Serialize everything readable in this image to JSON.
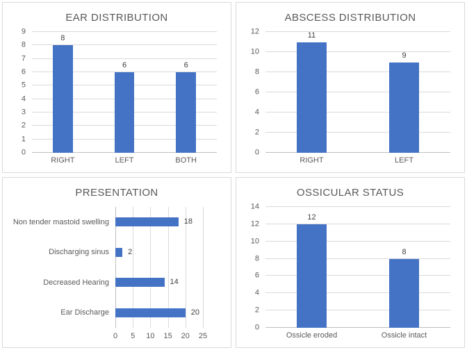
{
  "colors": {
    "bar_fill": "#4472C4",
    "gridline": "#D9D9D9",
    "axis_line": "#BFBFBF",
    "panel_border": "#D9D9D9",
    "title_text": "#595959",
    "axis_text": "#595959",
    "data_label_text": "#404040"
  },
  "chart_data": [
    {
      "type": "bar",
      "orientation": "vertical",
      "title": "EAR DISTRIBUTION",
      "categories": [
        "RIGHT",
        "LEFT",
        "BOTH"
      ],
      "values": [
        8,
        6,
        6
      ],
      "y_ticks": [
        0,
        1,
        2,
        3,
        4,
        5,
        6,
        7,
        8,
        9
      ],
      "ylim": [
        0,
        9
      ],
      "grid": true,
      "legend": false,
      "data_labels": true
    },
    {
      "type": "bar",
      "orientation": "vertical",
      "title": "ABSCESS DISTRIBUTION",
      "categories": [
        "RIGHT",
        "LEFT"
      ],
      "values": [
        11,
        9
      ],
      "y_ticks": [
        0,
        2,
        4,
        6,
        8,
        10,
        12
      ],
      "ylim": [
        0,
        12
      ],
      "grid": true,
      "legend": false,
      "data_labels": true
    },
    {
      "type": "bar",
      "orientation": "horizontal",
      "title": "PRESENTATION",
      "category_order": "top-to-bottom",
      "categories": [
        "Non tender mastoid swelling",
        "Discharging sinus",
        "Decreased Hearing",
        "Ear Discharge"
      ],
      "values": [
        18,
        2,
        14,
        20
      ],
      "x_ticks": [
        0,
        5,
        10,
        15,
        20,
        25
      ],
      "xlim": [
        0,
        25
      ],
      "grid": true,
      "legend": false,
      "data_labels": true
    },
    {
      "type": "bar",
      "orientation": "vertical",
      "title": "OSSICULAR STATUS",
      "categories": [
        "Ossicle eroded",
        "Ossicle intact"
      ],
      "values": [
        12,
        8
      ],
      "y_ticks": [
        0,
        2,
        4,
        6,
        8,
        10,
        12,
        14
      ],
      "ylim": [
        0,
        14
      ],
      "grid": true,
      "legend": false,
      "data_labels": true
    }
  ]
}
